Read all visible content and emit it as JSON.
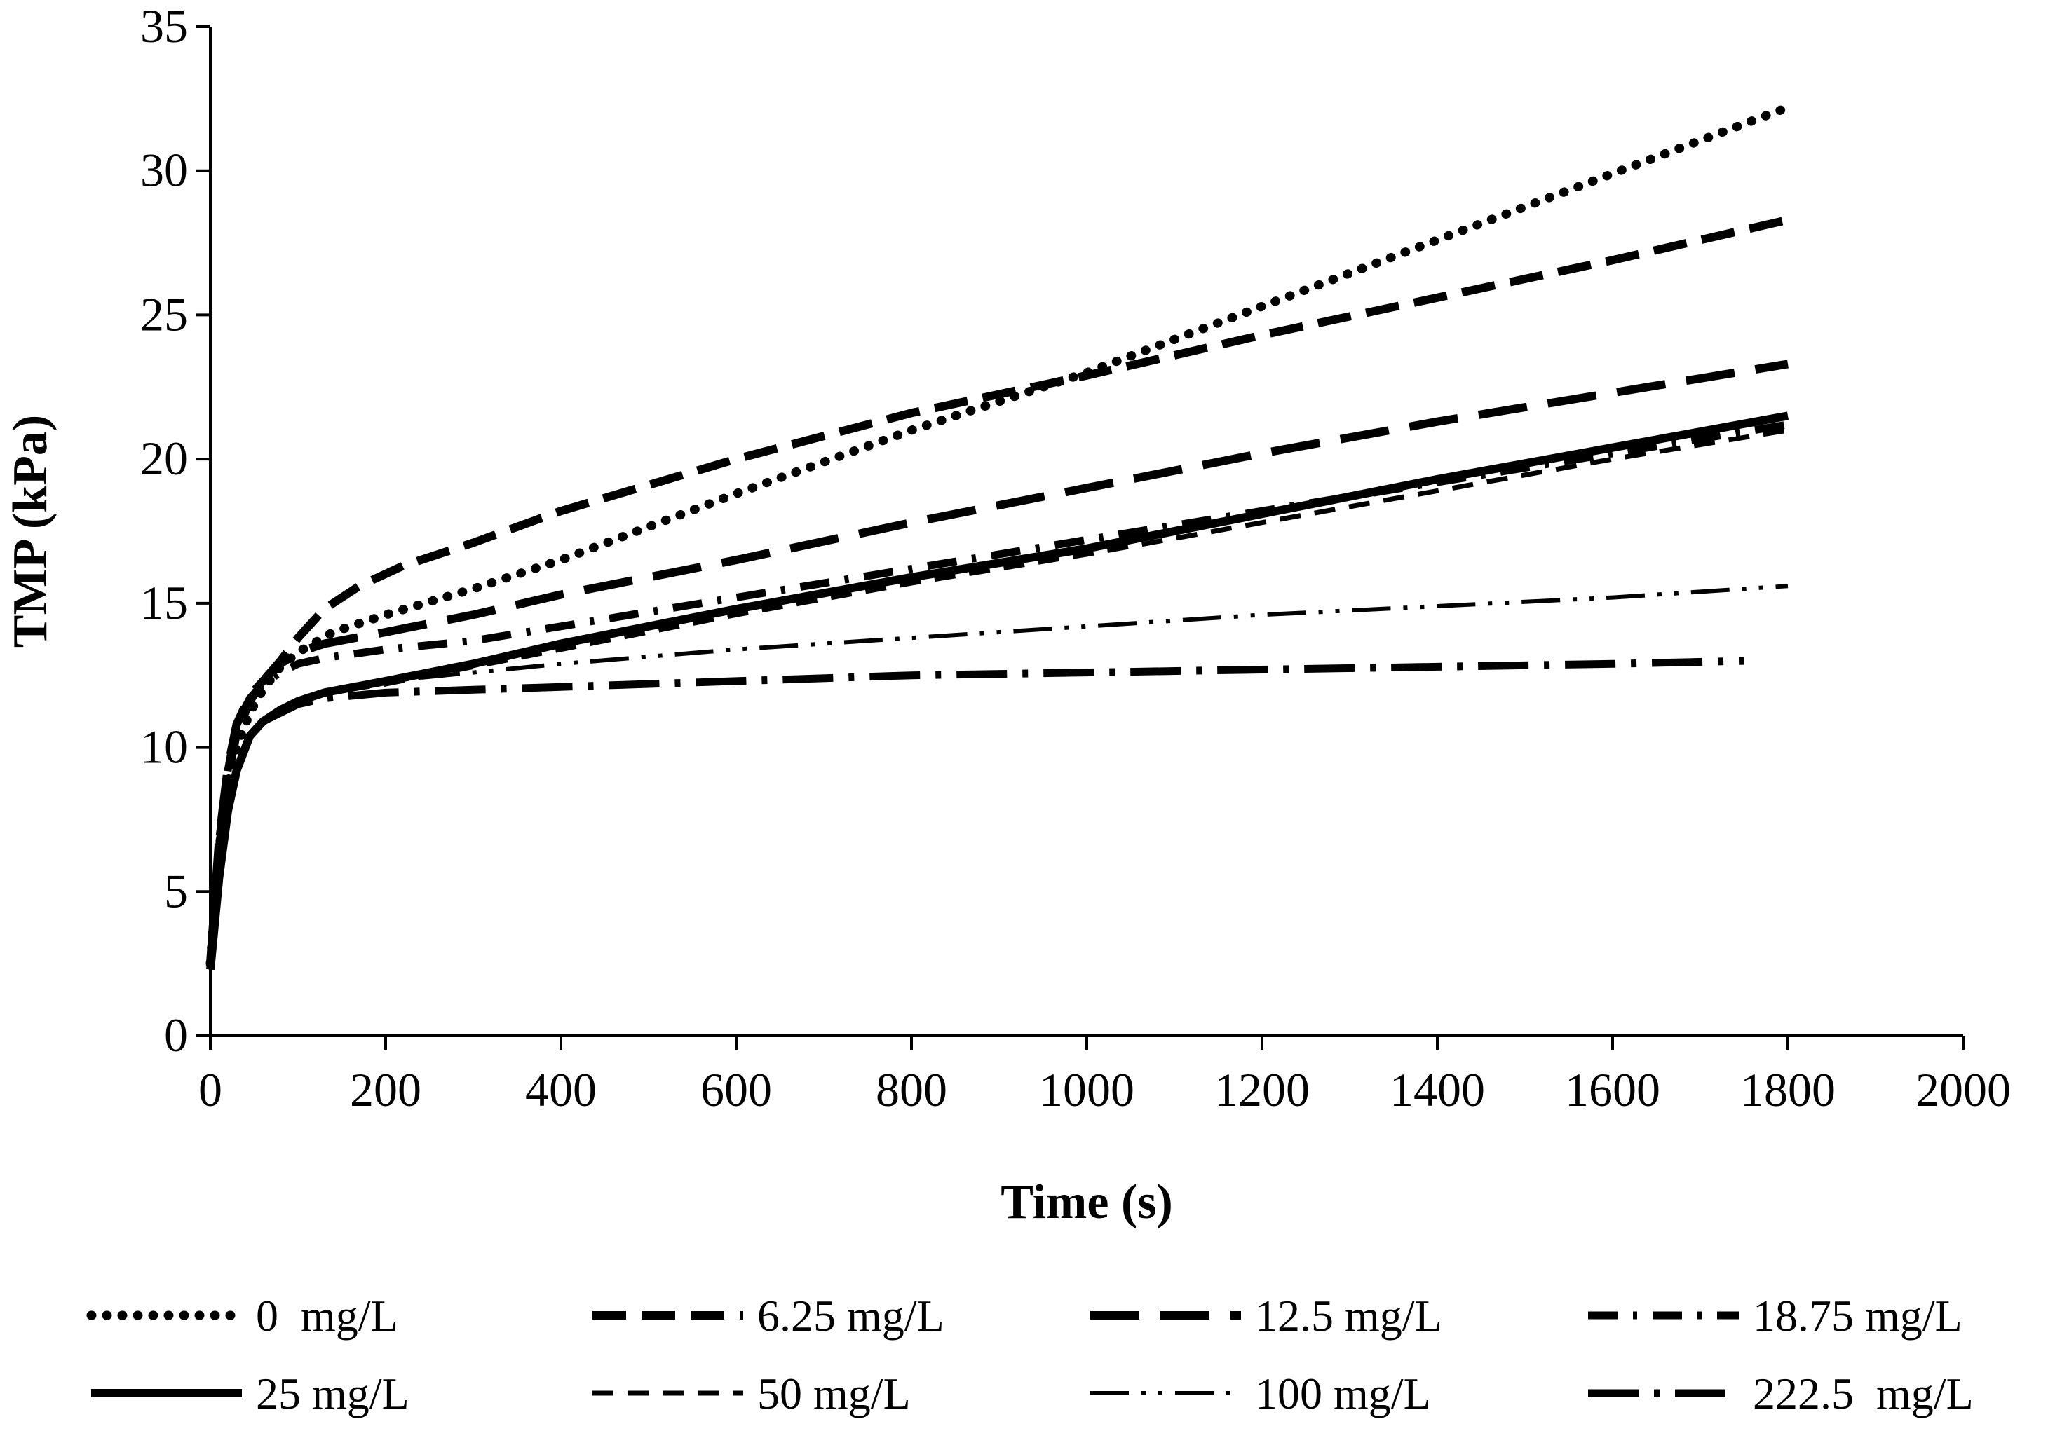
{
  "chart_data": {
    "type": "line",
    "title": "",
    "xlabel": "Time (s)",
    "ylabel": "TMP (kPa)",
    "xlim": [
      0,
      2000
    ],
    "ylim": [
      0,
      35
    ],
    "xticks": [
      0,
      200,
      400,
      600,
      800,
      1000,
      1200,
      1400,
      1600,
      1800,
      2000
    ],
    "yticks": [
      0,
      5,
      10,
      15,
      20,
      25,
      30,
      35
    ],
    "grid": false,
    "legend_position": "bottom",
    "series": [
      {
        "name": "0  mg/L",
        "style": "dotted",
        "x": [
          0,
          10,
          20,
          30,
          45,
          60,
          80,
          100,
          140,
          200,
          300,
          400,
          600,
          800,
          1000,
          1200,
          1400,
          1600,
          1800
        ],
        "y": [
          2.5,
          6.5,
          8.8,
          10.0,
          11.2,
          12.0,
          12.8,
          13.3,
          14.0,
          14.6,
          15.5,
          16.5,
          18.8,
          21.0,
          23.0,
          25.3,
          27.6,
          29.9,
          32.2
        ]
      },
      {
        "name": "6.25 mg/L",
        "style": "dash",
        "x": [
          0,
          10,
          20,
          30,
          45,
          60,
          80,
          100,
          130,
          170,
          220,
          300,
          400,
          600,
          800,
          1000,
          1200,
          1400,
          1600,
          1800
        ],
        "y": [
          2.5,
          6.5,
          9.0,
          10.5,
          11.6,
          12.3,
          13.0,
          13.8,
          14.8,
          15.6,
          16.3,
          17.1,
          18.2,
          20.0,
          21.6,
          22.9,
          24.3,
          25.6,
          26.9,
          28.3
        ]
      },
      {
        "name": "12.5 mg/L",
        "style": "longdash",
        "x": [
          0,
          10,
          20,
          30,
          45,
          60,
          80,
          100,
          130,
          200,
          300,
          400,
          600,
          800,
          1000,
          1200,
          1400,
          1600,
          1800
        ],
        "y": [
          2.5,
          6.8,
          9.3,
          10.8,
          11.8,
          12.3,
          12.9,
          13.3,
          13.6,
          14.0,
          14.6,
          15.3,
          16.5,
          17.8,
          19.0,
          20.2,
          21.3,
          22.3,
          23.3
        ]
      },
      {
        "name": "18.75 mg/L",
        "style": "dashdot",
        "x": [
          0,
          10,
          20,
          30,
          45,
          60,
          80,
          100,
          130,
          200,
          300,
          400,
          600,
          800,
          1000,
          1200,
          1400,
          1600,
          1800
        ],
        "y": [
          2.5,
          6.8,
          9.2,
          10.8,
          11.7,
          12.2,
          12.6,
          12.9,
          13.1,
          13.4,
          13.7,
          14.2,
          15.2,
          16.2,
          17.2,
          18.2,
          19.2,
          20.2,
          21.2
        ]
      },
      {
        "name": "25 mg/L",
        "style": "solid",
        "x": [
          0,
          10,
          20,
          30,
          45,
          60,
          80,
          100,
          130,
          200,
          300,
          400,
          600,
          800,
          1000,
          1200,
          1400,
          1600,
          1800
        ],
        "y": [
          2.3,
          5.5,
          7.8,
          9.2,
          10.4,
          10.9,
          11.3,
          11.6,
          11.9,
          12.3,
          12.9,
          13.6,
          14.8,
          15.9,
          16.9,
          18.1,
          19.3,
          20.4,
          21.5
        ]
      },
      {
        "name": "50 mg/L",
        "style": "shortdash",
        "x": [
          0,
          10,
          20,
          30,
          45,
          60,
          80,
          100,
          130,
          200,
          300,
          400,
          600,
          800,
          1000,
          1200,
          1400,
          1600,
          1800
        ],
        "y": [
          2.3,
          5.5,
          7.8,
          9.2,
          10.4,
          10.9,
          11.3,
          11.6,
          11.9,
          12.2,
          12.8,
          13.4,
          14.6,
          15.7,
          16.7,
          17.8,
          18.9,
          20.0,
          21.0
        ]
      },
      {
        "name": "100 mg/L",
        "style": "dashdotdot",
        "x": [
          0,
          10,
          20,
          30,
          45,
          60,
          80,
          100,
          130,
          200,
          300,
          400,
          600,
          800,
          1000,
          1200,
          1400,
          1600,
          1800
        ],
        "y": [
          2.3,
          5.5,
          7.8,
          9.2,
          10.4,
          10.9,
          11.3,
          11.6,
          11.9,
          12.3,
          12.6,
          12.9,
          13.4,
          13.8,
          14.2,
          14.6,
          14.9,
          15.2,
          15.6
        ]
      },
      {
        "name": "222.5  mg/L",
        "style": "longdashdot",
        "x": [
          0,
          10,
          20,
          30,
          45,
          60,
          80,
          100,
          130,
          200,
          300,
          400,
          600,
          800,
          1000,
          1200,
          1400,
          1600,
          1750
        ],
        "y": [
          2.3,
          5.5,
          7.8,
          9.2,
          10.4,
          10.9,
          11.2,
          11.5,
          11.7,
          11.9,
          12.0,
          12.1,
          12.3,
          12.5,
          12.6,
          12.7,
          12.8,
          12.9,
          13.0
        ]
      }
    ]
  }
}
